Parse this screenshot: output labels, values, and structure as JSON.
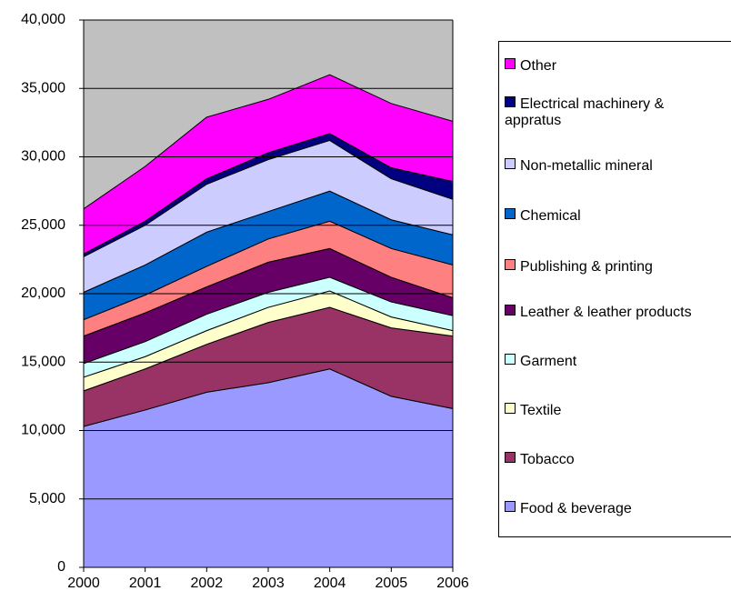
{
  "chart_data": {
    "type": "stacked_area",
    "categories": [
      "2000",
      "2001",
      "2002",
      "2003",
      "2004",
      "2005",
      "2006"
    ],
    "series": [
      {
        "name": "Food & beverage",
        "color": "#9999ff",
        "values": [
          10300,
          11500,
          12800,
          13500,
          14500,
          12500,
          11600
        ]
      },
      {
        "name": "Tobacco",
        "color": "#993366",
        "values": [
          2600,
          3000,
          3500,
          4400,
          4500,
          5000,
          5300
        ]
      },
      {
        "name": "Textile",
        "color": "#ffffcc",
        "values": [
          1000,
          900,
          1000,
          1100,
          1200,
          800,
          400
        ]
      },
      {
        "name": "Garment",
        "color": "#ccffff",
        "values": [
          1000,
          1100,
          1200,
          1100,
          1000,
          1100,
          1100
        ]
      },
      {
        "name": "Leather & leather products",
        "color": "#660066",
        "values": [
          2000,
          2100,
          2000,
          2200,
          2100,
          1800,
          1300
        ]
      },
      {
        "name": "Publishing & printing",
        "color": "#ff8080",
        "values": [
          1200,
          1300,
          1500,
          1700,
          2000,
          2100,
          2400
        ]
      },
      {
        "name": "Chemical",
        "color": "#0066cc",
        "values": [
          2000,
          2200,
          2500,
          2000,
          2200,
          2100,
          2200
        ]
      },
      {
        "name": "Non-metallic mineral",
        "color": "#ccccff",
        "values": [
          2600,
          2900,
          3500,
          3800,
          3700,
          3000,
          2600
        ]
      },
      {
        "name": "Electrical machinery & appratus",
        "color": "#000080",
        "values": [
          200,
          300,
          400,
          500,
          500,
          800,
          1300
        ]
      },
      {
        "name": "Other",
        "color": "#ff00ff",
        "values": [
          3300,
          4000,
          4500,
          3900,
          4300,
          4700,
          4400
        ]
      }
    ],
    "ylim": [
      0,
      40000
    ],
    "yticks": [
      0,
      {
        "value": 5000,
        "label": "5,000"
      },
      {
        "value": 10000,
        "label": "10,000"
      },
      {
        "value": 15000,
        "label": "15,000"
      },
      {
        "value": 20000,
        "label": "20,000"
      },
      {
        "value": 25000,
        "label": "25,000"
      },
      {
        "value": 30000,
        "label": "30,000"
      },
      {
        "value": 35000,
        "label": "35,000"
      },
      {
        "value": 40000,
        "label": "40,000"
      }
    ],
    "grid": true,
    "plot_background": "#c0c0c0",
    "legend": "right"
  }
}
